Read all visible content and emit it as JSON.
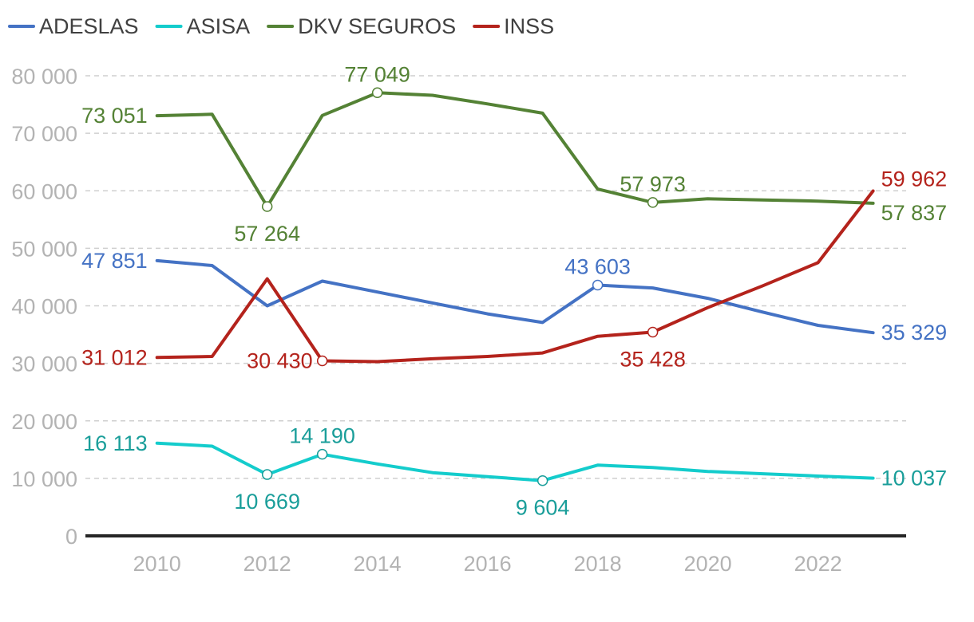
{
  "chart_data": {
    "type": "line",
    "title": "",
    "xlabel": "",
    "ylabel": "",
    "x": [
      2010,
      2011,
      2012,
      2013,
      2014,
      2015,
      2016,
      2017,
      2018,
      2019,
      2020,
      2021,
      2022,
      2023
    ],
    "x_ticks": [
      "2010",
      "2012",
      "2014",
      "2016",
      "2018",
      "2020",
      "2022"
    ],
    "x_tick_values": [
      2010,
      2012,
      2014,
      2016,
      2018,
      2020,
      2022
    ],
    "xlim": [
      2008.7,
      2023.6
    ],
    "y_ticks": [
      "0",
      "10 000",
      "20 000",
      "30 000",
      "40 000",
      "50 000",
      "60 000",
      "70 000",
      "80 000"
    ],
    "y_tick_values": [
      0,
      10000,
      20000,
      30000,
      40000,
      50000,
      60000,
      70000,
      80000
    ],
    "ylim": [
      0,
      80000
    ],
    "grid": true,
    "legend_position": "top-left",
    "series": [
      {
        "name": "ADESLAS",
        "color": "#4472c4",
        "values": [
          47851,
          47000,
          40000,
          44300,
          42400,
          40500,
          38600,
          37100,
          43603,
          43100,
          41300,
          38900,
          36600,
          35329
        ],
        "labels": [
          {
            "index": 0,
            "text": "47 851",
            "pos": "left",
            "marker": false
          },
          {
            "index": 8,
            "text": "43 603",
            "pos": "above",
            "marker": true
          },
          {
            "index": 13,
            "text": "35 329",
            "pos": "right",
            "marker": false
          }
        ]
      },
      {
        "name": "ASISA",
        "color": "#14cccc",
        "label_color": "#1a9e9a",
        "values": [
          16113,
          15600,
          10669,
          14190,
          12500,
          11000,
          10300,
          9604,
          12300,
          11900,
          11200,
          10800,
          10400,
          10037
        ],
        "labels": [
          {
            "index": 0,
            "text": "16 113",
            "pos": "left",
            "marker": false
          },
          {
            "index": 2,
            "text": "10 669",
            "pos": "below",
            "marker": true
          },
          {
            "index": 3,
            "text": "14 190",
            "pos": "above",
            "marker": true
          },
          {
            "index": 7,
            "text": "9 604",
            "pos": "below",
            "marker": true
          },
          {
            "index": 13,
            "text": "10 037",
            "pos": "right",
            "marker": false
          }
        ]
      },
      {
        "name": "DKV SEGUROS",
        "color": "#548235",
        "values": [
          73051,
          73300,
          57264,
          73100,
          77049,
          76600,
          75100,
          73500,
          60300,
          57973,
          58600,
          58400,
          58200,
          57837
        ],
        "labels": [
          {
            "index": 0,
            "text": "73 051",
            "pos": "left",
            "marker": false
          },
          {
            "index": 2,
            "text": "57 264",
            "pos": "below",
            "marker": true
          },
          {
            "index": 4,
            "text": "77 049",
            "pos": "above",
            "marker": true
          },
          {
            "index": 9,
            "text": "57 973",
            "pos": "above",
            "marker": true
          },
          {
            "index": 13,
            "text": "57 837",
            "pos": "right-below",
            "marker": false
          }
        ]
      },
      {
        "name": "INSS",
        "color": "#b4231c",
        "values": [
          31012,
          31200,
          44700,
          30430,
          30300,
          30800,
          31200,
          31800,
          34700,
          35428,
          39700,
          43500,
          47500,
          59962
        ],
        "labels": [
          {
            "index": 0,
            "text": "31 012",
            "pos": "left",
            "marker": false
          },
          {
            "index": 3,
            "text": "30 430",
            "pos": "left",
            "marker": true
          },
          {
            "index": 9,
            "text": "35 428",
            "pos": "below",
            "marker": true
          },
          {
            "index": 13,
            "text": "59 962",
            "pos": "right-above",
            "marker": false
          }
        ]
      }
    ]
  }
}
